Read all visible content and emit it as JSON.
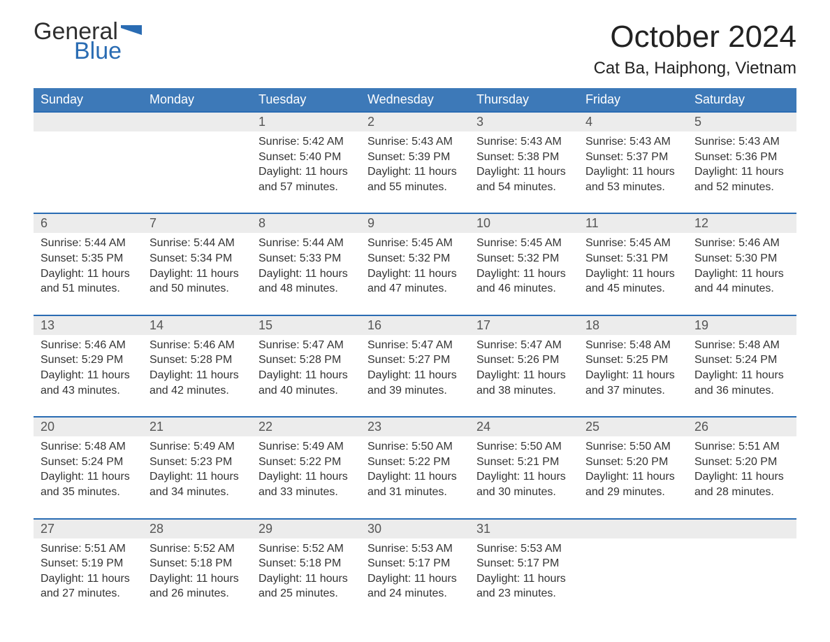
{
  "logo": {
    "top": "General",
    "bottom": "Blue",
    "flag_color": "#2a6cb3",
    "top_color": "#2f2f2f",
    "bottom_color": "#2a6cb3"
  },
  "title": "October 2024",
  "location": "Cat Ba, Haiphong, Vietnam",
  "colors": {
    "header_bg": "#3d79b8",
    "header_text": "#ffffff",
    "week_border": "#2a6cb3",
    "daynum_bg": "#ececec",
    "body_text": "#333333"
  },
  "days_of_week": [
    "Sunday",
    "Monday",
    "Tuesday",
    "Wednesday",
    "Thursday",
    "Friday",
    "Saturday"
  ],
  "weeks": [
    [
      {
        "n": "",
        "sr": "",
        "ss": "",
        "dl": ""
      },
      {
        "n": "",
        "sr": "",
        "ss": "",
        "dl": ""
      },
      {
        "n": "1",
        "sr": "5:42 AM",
        "ss": "5:40 PM",
        "dl": "11 hours and 57 minutes."
      },
      {
        "n": "2",
        "sr": "5:43 AM",
        "ss": "5:39 PM",
        "dl": "11 hours and 55 minutes."
      },
      {
        "n": "3",
        "sr": "5:43 AM",
        "ss": "5:38 PM",
        "dl": "11 hours and 54 minutes."
      },
      {
        "n": "4",
        "sr": "5:43 AM",
        "ss": "5:37 PM",
        "dl": "11 hours and 53 minutes."
      },
      {
        "n": "5",
        "sr": "5:43 AM",
        "ss": "5:36 PM",
        "dl": "11 hours and 52 minutes."
      }
    ],
    [
      {
        "n": "6",
        "sr": "5:44 AM",
        "ss": "5:35 PM",
        "dl": "11 hours and 51 minutes."
      },
      {
        "n": "7",
        "sr": "5:44 AM",
        "ss": "5:34 PM",
        "dl": "11 hours and 50 minutes."
      },
      {
        "n": "8",
        "sr": "5:44 AM",
        "ss": "5:33 PM",
        "dl": "11 hours and 48 minutes."
      },
      {
        "n": "9",
        "sr": "5:45 AM",
        "ss": "5:32 PM",
        "dl": "11 hours and 47 minutes."
      },
      {
        "n": "10",
        "sr": "5:45 AM",
        "ss": "5:32 PM",
        "dl": "11 hours and 46 minutes."
      },
      {
        "n": "11",
        "sr": "5:45 AM",
        "ss": "5:31 PM",
        "dl": "11 hours and 45 minutes."
      },
      {
        "n": "12",
        "sr": "5:46 AM",
        "ss": "5:30 PM",
        "dl": "11 hours and 44 minutes."
      }
    ],
    [
      {
        "n": "13",
        "sr": "5:46 AM",
        "ss": "5:29 PM",
        "dl": "11 hours and 43 minutes."
      },
      {
        "n": "14",
        "sr": "5:46 AM",
        "ss": "5:28 PM",
        "dl": "11 hours and 42 minutes."
      },
      {
        "n": "15",
        "sr": "5:47 AM",
        "ss": "5:28 PM",
        "dl": "11 hours and 40 minutes."
      },
      {
        "n": "16",
        "sr": "5:47 AM",
        "ss": "5:27 PM",
        "dl": "11 hours and 39 minutes."
      },
      {
        "n": "17",
        "sr": "5:47 AM",
        "ss": "5:26 PM",
        "dl": "11 hours and 38 minutes."
      },
      {
        "n": "18",
        "sr": "5:48 AM",
        "ss": "5:25 PM",
        "dl": "11 hours and 37 minutes."
      },
      {
        "n": "19",
        "sr": "5:48 AM",
        "ss": "5:24 PM",
        "dl": "11 hours and 36 minutes."
      }
    ],
    [
      {
        "n": "20",
        "sr": "5:48 AM",
        "ss": "5:24 PM",
        "dl": "11 hours and 35 minutes."
      },
      {
        "n": "21",
        "sr": "5:49 AM",
        "ss": "5:23 PM",
        "dl": "11 hours and 34 minutes."
      },
      {
        "n": "22",
        "sr": "5:49 AM",
        "ss": "5:22 PM",
        "dl": "11 hours and 33 minutes."
      },
      {
        "n": "23",
        "sr": "5:50 AM",
        "ss": "5:22 PM",
        "dl": "11 hours and 31 minutes."
      },
      {
        "n": "24",
        "sr": "5:50 AM",
        "ss": "5:21 PM",
        "dl": "11 hours and 30 minutes."
      },
      {
        "n": "25",
        "sr": "5:50 AM",
        "ss": "5:20 PM",
        "dl": "11 hours and 29 minutes."
      },
      {
        "n": "26",
        "sr": "5:51 AM",
        "ss": "5:20 PM",
        "dl": "11 hours and 28 minutes."
      }
    ],
    [
      {
        "n": "27",
        "sr": "5:51 AM",
        "ss": "5:19 PM",
        "dl": "11 hours and 27 minutes."
      },
      {
        "n": "28",
        "sr": "5:52 AM",
        "ss": "5:18 PM",
        "dl": "11 hours and 26 minutes."
      },
      {
        "n": "29",
        "sr": "5:52 AM",
        "ss": "5:18 PM",
        "dl": "11 hours and 25 minutes."
      },
      {
        "n": "30",
        "sr": "5:53 AM",
        "ss": "5:17 PM",
        "dl": "11 hours and 24 minutes."
      },
      {
        "n": "31",
        "sr": "5:53 AM",
        "ss": "5:17 PM",
        "dl": "11 hours and 23 minutes."
      },
      {
        "n": "",
        "sr": "",
        "ss": "",
        "dl": ""
      },
      {
        "n": "",
        "sr": "",
        "ss": "",
        "dl": ""
      }
    ]
  ],
  "labels": {
    "sunrise": "Sunrise:",
    "sunset": "Sunset:",
    "daylight": "Daylight:"
  }
}
